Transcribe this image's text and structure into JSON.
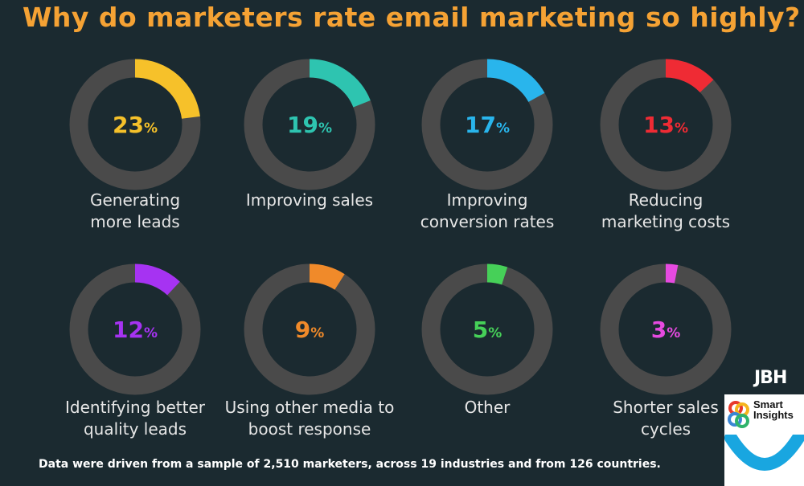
{
  "title": "Why do marketers rate  email marketing so highly?",
  "footnote": "Data were driven from a sample of 2,510 marketers, across 19 industries and from 126 countries.",
  "brand": {
    "jbh": "JBH",
    "smart_insights": "Smart\nInsights"
  },
  "colors": {
    "background": "#1b2a30",
    "track": "#4a4a4a",
    "label": "#e6e6e6"
  },
  "chart_data": {
    "type": "donut",
    "unit": "%",
    "categories": [
      "Generating\nmore leads",
      "Improving sales",
      "Improving\nconversion rates",
      "Reducing\nmarketing costs",
      "Identifying better\nquality leads",
      "Using other media to\nboost response",
      "Other",
      "Shorter sales\ncycles"
    ],
    "values": [
      23,
      19,
      17,
      13,
      12,
      9,
      5,
      3
    ],
    "colors": [
      "#f6c12a",
      "#2ec4b0",
      "#29b5ec",
      "#ef2b34",
      "#a633f2",
      "#f08a2a",
      "#46d058",
      "#e64ae0"
    ]
  }
}
